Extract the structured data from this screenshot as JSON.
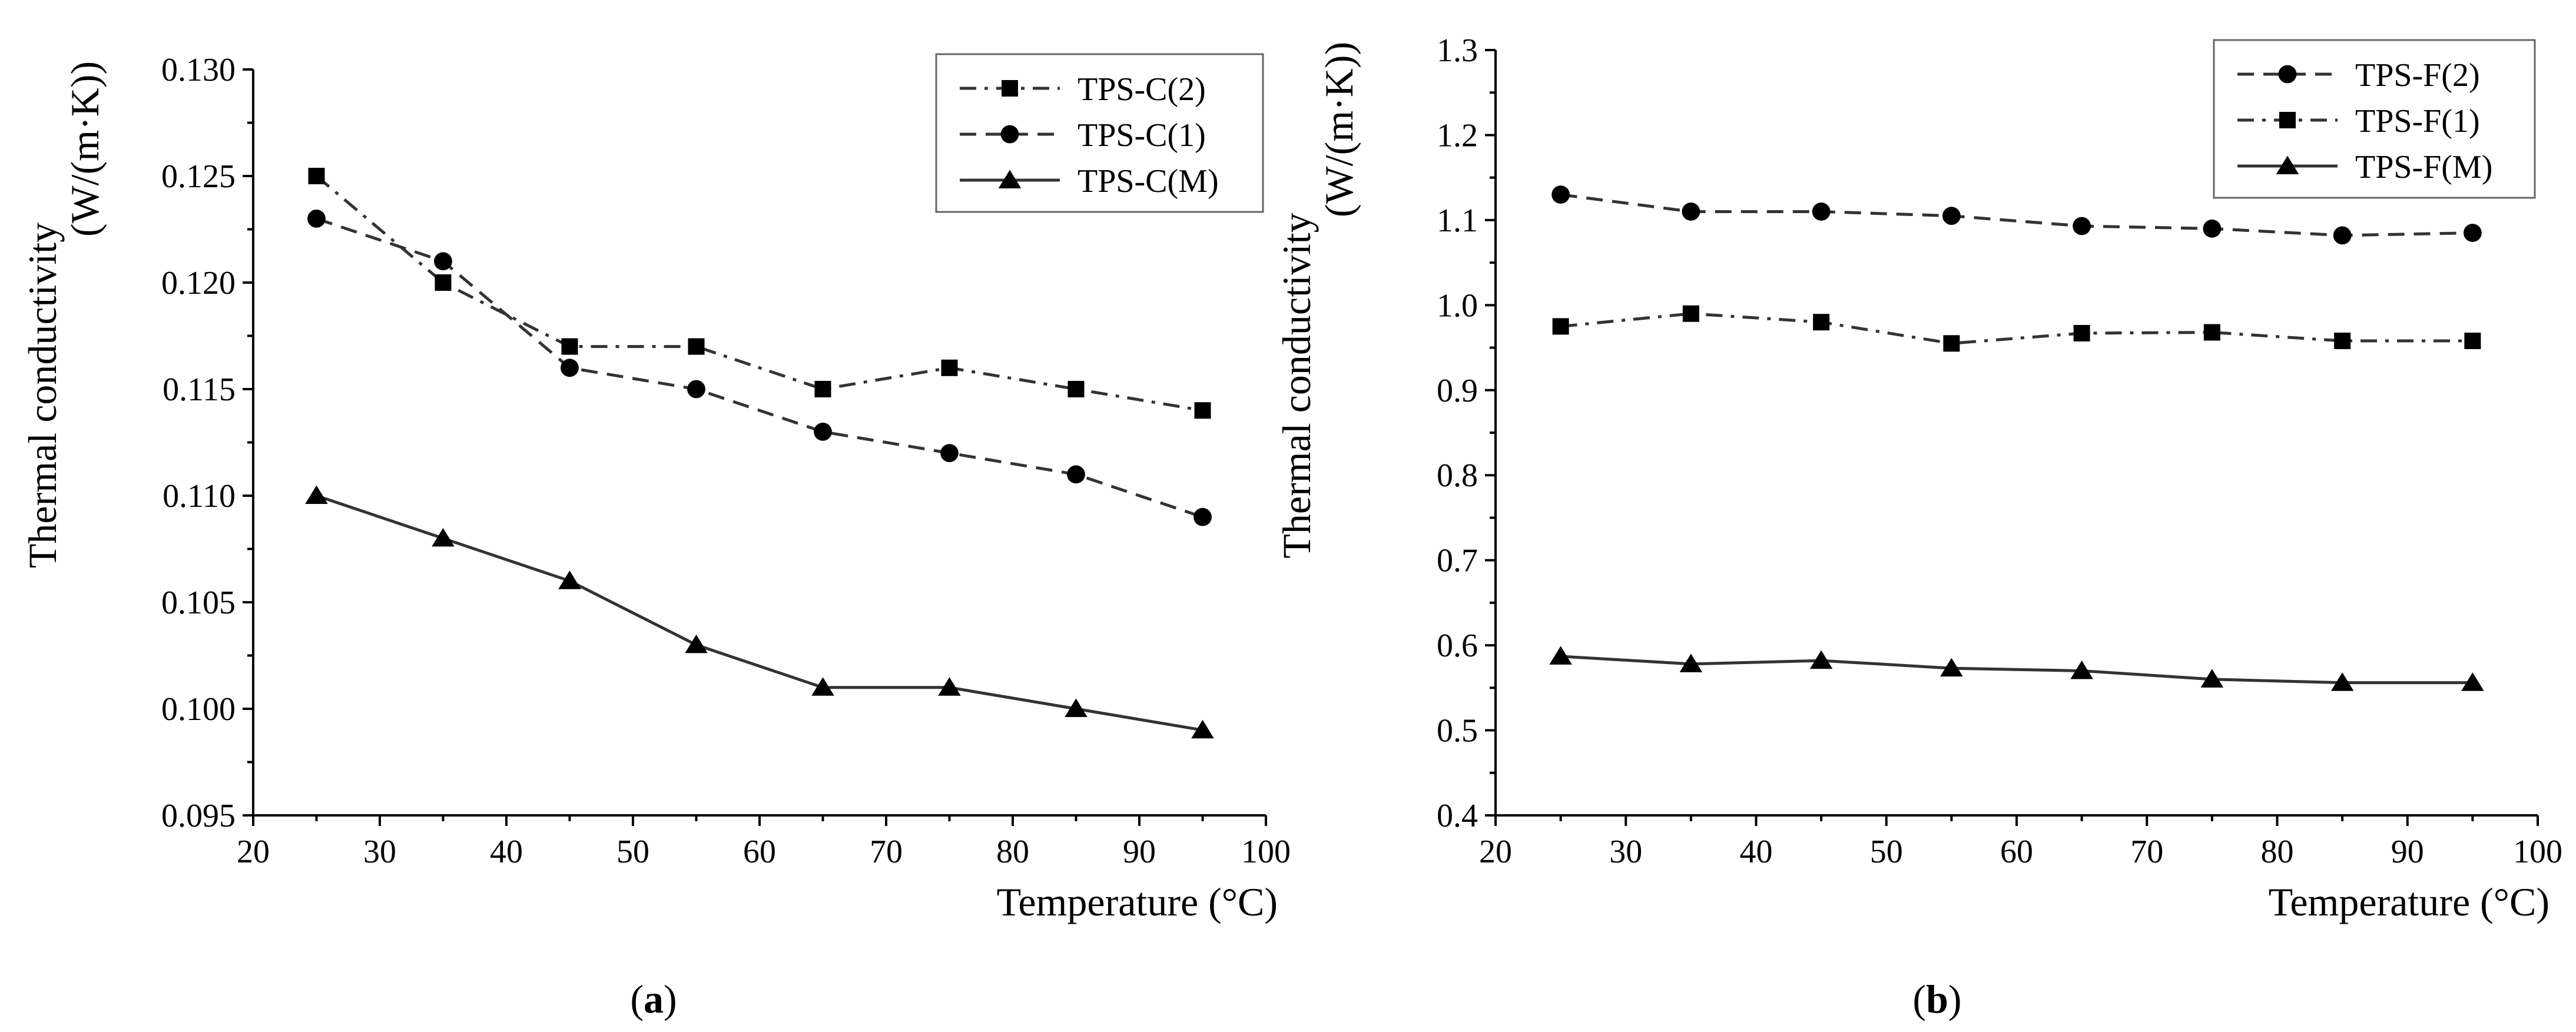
{
  "chart_data": [
    {
      "type": "line",
      "caption": "(a)",
      "caption_letter": "a",
      "xlabel": "Temperature (°C)",
      "ylabel_line1": "Thermal conductivity",
      "ylabel_line2": "(W/(m·K))",
      "xlim": [
        20,
        100
      ],
      "ylim": [
        0.095,
        0.13
      ],
      "xticks": [
        20,
        30,
        40,
        50,
        60,
        70,
        80,
        90,
        100
      ],
      "yticks": [
        "0.095",
        "0.100",
        "0.105",
        "0.110",
        "0.115",
        "0.120",
        "0.125",
        "0.130"
      ],
      "x": [
        25,
        35,
        45,
        55,
        65,
        75,
        85,
        95
      ],
      "legend_position": "top-right",
      "series": [
        {
          "name": "TPS-C(2)",
          "marker": "square",
          "dash": "dashdot",
          "values": [
            0.125,
            0.12,
            0.117,
            0.117,
            0.115,
            0.116,
            0.115,
            0.114
          ]
        },
        {
          "name": "TPS-C(1)",
          "marker": "circle",
          "dash": "dash",
          "values": [
            0.123,
            0.121,
            0.116,
            0.115,
            0.113,
            0.112,
            0.111,
            0.109
          ]
        },
        {
          "name": "TPS-C(M)",
          "marker": "triangle",
          "dash": "solid",
          "values": [
            0.11,
            0.108,
            0.106,
            0.103,
            0.101,
            0.101,
            0.1,
            0.099
          ]
        }
      ]
    },
    {
      "type": "line",
      "caption": "(b)",
      "caption_letter": "b",
      "xlabel": "Temperature (°C)",
      "ylabel_line1": "Thermal conductivity",
      "ylabel_line2": "(W/(m·K))",
      "xlim": [
        20,
        100
      ],
      "ylim": [
        0.4,
        1.3
      ],
      "xticks": [
        20,
        30,
        40,
        50,
        60,
        70,
        80,
        90,
        100
      ],
      "yticks": [
        "0.4",
        "0.5",
        "0.6",
        "0.7",
        "0.8",
        "0.9",
        "1.0",
        "1.1",
        "1.2",
        "1.3"
      ],
      "x": [
        25,
        35,
        45,
        55,
        65,
        75,
        85,
        95
      ],
      "legend_position": "top-right",
      "series": [
        {
          "name": "TPS-F(2)",
          "marker": "circle",
          "dash": "dash",
          "values": [
            1.13,
            1.11,
            1.11,
            1.105,
            1.093,
            1.09,
            1.082,
            1.085
          ]
        },
        {
          "name": "TPS-F(1)",
          "marker": "square",
          "dash": "dashdot",
          "values": [
            0.975,
            0.99,
            0.98,
            0.955,
            0.967,
            0.968,
            0.958,
            0.958
          ]
        },
        {
          "name": "TPS-F(M)",
          "marker": "triangle",
          "dash": "solid",
          "values": [
            0.587,
            0.578,
            0.582,
            0.573,
            0.57,
            0.56,
            0.556,
            0.556
          ]
        }
      ]
    }
  ]
}
